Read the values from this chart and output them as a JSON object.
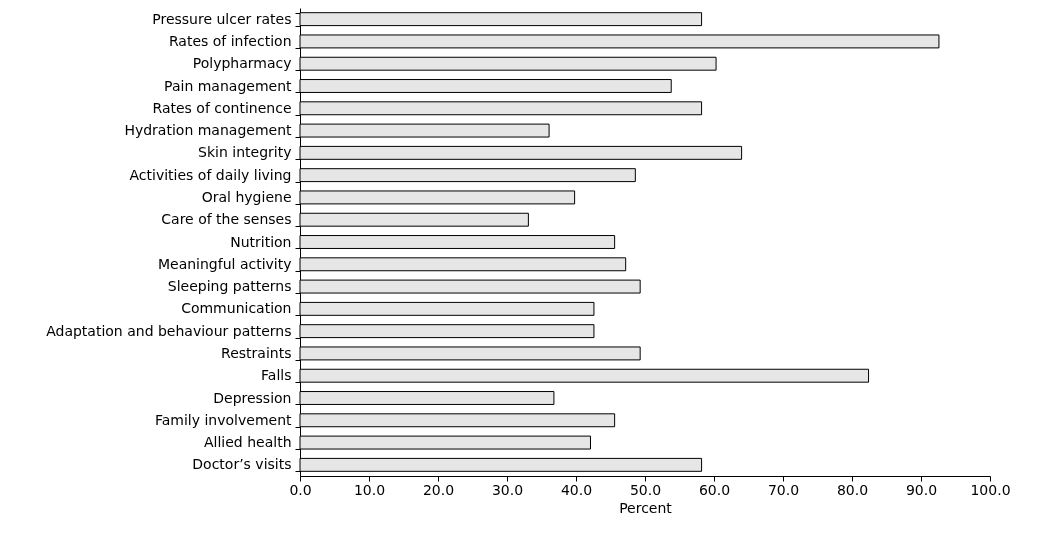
{
  "chart_data": {
    "type": "bar",
    "orientation": "horizontal",
    "xlabel": "Percent",
    "categories": [
      "Pressure ulcer rates",
      "Rates of infection",
      "Polypharmacy",
      "Pain management",
      "Rates of continence",
      "Hydration management",
      "Skin integrity",
      "Activities of daily living",
      "Oral hygiene",
      "Care of the senses",
      "Nutrition",
      "Meaningful activity",
      "Sleeping patterns",
      "Communication",
      "Adaptation and behaviour patterns",
      "Restraints",
      "Falls",
      "Depression",
      "Family involvement",
      "Allied health",
      "Doctor’s visits"
    ],
    "values": [
      58.2,
      92.6,
      60.3,
      53.8,
      58.2,
      36.1,
      64.0,
      48.6,
      39.8,
      33.1,
      45.6,
      47.2,
      49.3,
      42.6,
      42.6,
      49.3,
      82.4,
      36.8,
      45.6,
      42.1,
      58.2
    ],
    "color": "#e6e6e6",
    "xlim": [
      0,
      100
    ],
    "xticks": [
      {
        "value": 0,
        "label": "0.0"
      },
      {
        "value": 10,
        "label": "10.0"
      },
      {
        "value": 20,
        "label": "20.0"
      },
      {
        "value": 30,
        "label": "30.0"
      },
      {
        "value": 40,
        "label": "40.0"
      },
      {
        "value": 50,
        "label": "50.0"
      },
      {
        "value": 60,
        "label": "60.0"
      },
      {
        "value": 70,
        "label": "70.0"
      },
      {
        "value": 80,
        "label": "80.0"
      },
      {
        "value": 90,
        "label": "90.0"
      },
      {
        "value": 100,
        "label": "100.0"
      }
    ],
    "grid": false
  }
}
